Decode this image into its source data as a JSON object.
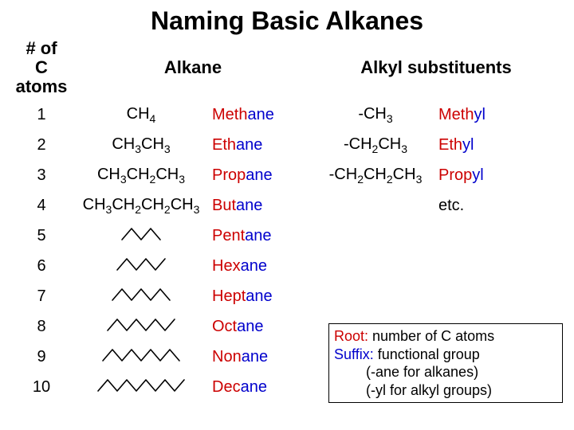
{
  "title": "Naming Basic Alkanes",
  "headers": {
    "n": "# of\nC atoms",
    "alkane": "Alkane",
    "sub": "Alkyl substituents"
  },
  "colors": {
    "prefix": "#cc0000",
    "suffix": "#0000cc",
    "text": "#000000",
    "background": "#ffffff",
    "border": "#000000"
  },
  "zigzag": {
    "stroke": "#000000",
    "stroke_width": 1.6,
    "seg_dx": 12,
    "seg_dy": 7
  },
  "rows": [
    {
      "n": "1",
      "formula_html": "CH<sub>4</sub>",
      "segs": 0,
      "prefix": "Meth",
      "suffix": "ane",
      "sub_formula_html": "-CH<sub>3</sub>",
      "sub_prefix": "Meth",
      "sub_suffix": "yl"
    },
    {
      "n": "2",
      "formula_html": "CH<sub>3</sub>CH<sub>3</sub>",
      "segs": 0,
      "prefix": "Eth",
      "suffix": "ane",
      "sub_formula_html": "-CH<sub>2</sub>CH<sub>3</sub>",
      "sub_prefix": "Eth",
      "sub_suffix": "yl"
    },
    {
      "n": "3",
      "formula_html": "CH<sub>3</sub>CH<sub>2</sub>CH<sub>3</sub>",
      "segs": 0,
      "prefix": "Prop",
      "suffix": "ane",
      "sub_formula_html": "-CH<sub>2</sub>CH<sub>2</sub>CH<sub>3</sub>",
      "sub_prefix": "Prop",
      "sub_suffix": "yl"
    },
    {
      "n": "4",
      "formula_html": "CH<sub>3</sub>CH<sub>2</sub>CH<sub>2</sub>CH<sub>3</sub>",
      "segs": 0,
      "prefix": "But",
      "suffix": "ane",
      "sub_formula_html": "",
      "sub_prefix": "",
      "sub_suffix": "",
      "etc": "etc."
    },
    {
      "n": "5",
      "formula_html": "",
      "segs": 4,
      "prefix": "Pent",
      "suffix": "ane"
    },
    {
      "n": "6",
      "formula_html": "",
      "segs": 5,
      "prefix": "Hex",
      "suffix": "ane"
    },
    {
      "n": "7",
      "formula_html": "",
      "segs": 6,
      "prefix": "Hept",
      "suffix": "ane"
    },
    {
      "n": "8",
      "formula_html": "",
      "segs": 7,
      "prefix": "Oct",
      "suffix": "ane"
    },
    {
      "n": "9",
      "formula_html": "",
      "segs": 8,
      "prefix": "Non",
      "suffix": "ane"
    },
    {
      "n": "10",
      "formula_html": "",
      "segs": 9,
      "prefix": "Dec",
      "suffix": "ane"
    }
  ],
  "notebox": {
    "line1_label": "Root:",
    "line1_text": " number of C atoms",
    "line2_label": "Suffix:",
    "line2_text": " functional group",
    "line3": "(-ane for alkanes)",
    "line4": "(-yl for alkyl groups)"
  }
}
